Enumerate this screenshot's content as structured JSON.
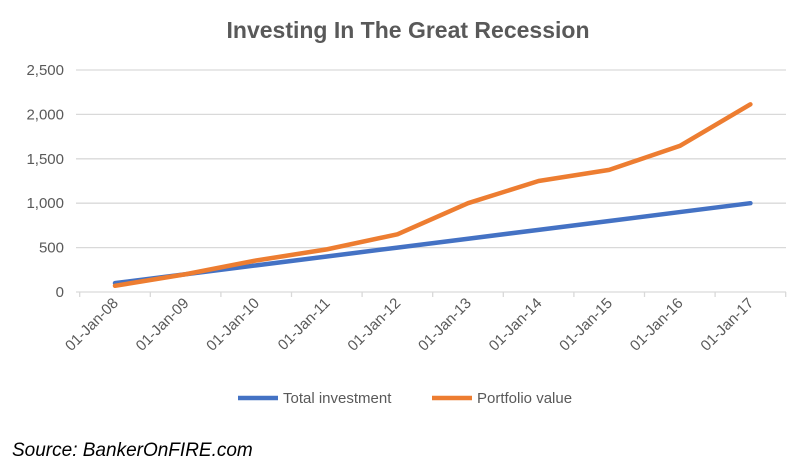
{
  "chart_data": {
    "type": "line",
    "title": "Investing In The Great Recession",
    "xlabel": "",
    "ylabel": "",
    "categories": [
      "01-Jan-08",
      "01-Jan-09",
      "01-Jan-10",
      "01-Jan-11",
      "01-Jan-12",
      "01-Jan-13",
      "01-Jan-14",
      "01-Jan-15",
      "01-Jan-16",
      "01-Jan-17"
    ],
    "ylim": [
      0,
      2500
    ],
    "yticks": [
      0,
      500,
      1000,
      1500,
      2000,
      2500
    ],
    "ytick_labels": [
      "0",
      "500",
      "1,000",
      "1,500",
      "2,000",
      "2,500"
    ],
    "grid": true,
    "legend_position": "bottom",
    "series": [
      {
        "name": "Total investment",
        "color": "#4472C4",
        "values": [
          100,
          200,
          300,
          400,
          500,
          600,
          700,
          800,
          900,
          1000
        ]
      },
      {
        "name": "Portfolio value",
        "color": "#ED7D31",
        "values": [
          70,
          200,
          355,
          480,
          650,
          1000,
          1250,
          1375,
          1645,
          2113
        ]
      }
    ]
  },
  "source": "Source: BankerOnFIRE.com"
}
